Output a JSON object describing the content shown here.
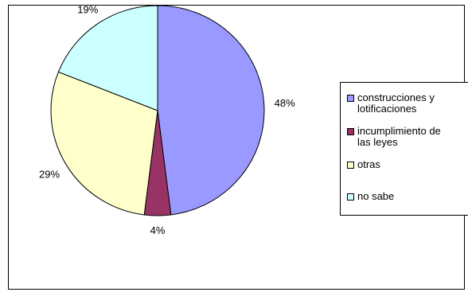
{
  "chart_data": {
    "type": "pie",
    "categories": [
      "construcciones y lotificaciones",
      "incumplimiento de las leyes",
      "otras",
      "no sabe"
    ],
    "values": [
      48,
      4,
      29,
      19
    ],
    "data_labels": [
      "48%",
      "4%",
      "29%",
      "19%"
    ],
    "colors": [
      "#9999FF",
      "#993366",
      "#FFFFCC",
      "#CCFFFF"
    ],
    "legend_lines": [
      [
        "construcciones y",
        "lotificaciones"
      ],
      [
        "incumplimiento de",
        "las leyes"
      ],
      [
        "otras"
      ],
      [
        "no sabe"
      ]
    ],
    "legend_placement": "right",
    "start_angle": "top",
    "direction": "clockwise"
  }
}
